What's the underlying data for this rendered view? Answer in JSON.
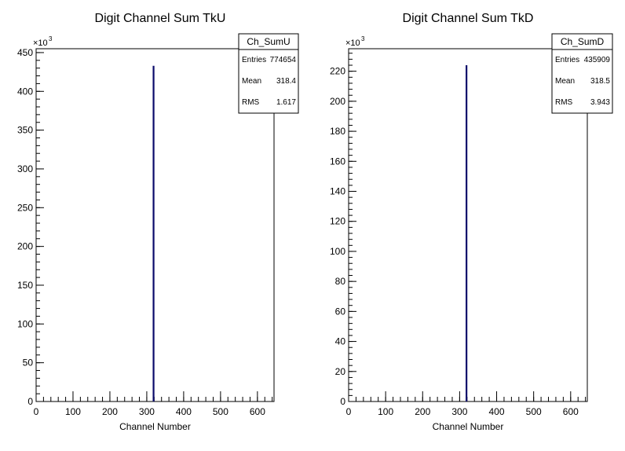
{
  "colors": {
    "histogram": "#0b0b6b",
    "axis": "#000000",
    "background": "#ffffff"
  },
  "chart_data": [
    {
      "type": "bar",
      "title": "Digit Channel Sum TkU",
      "xlabel": "Channel Number",
      "ylabel": "",
      "multiplier": "×10",
      "multiplier_exp": "3",
      "xlim": [
        0,
        645
      ],
      "ylim": [
        0,
        455
      ],
      "x_ticks": [
        0,
        100,
        200,
        300,
        400,
        500,
        600
      ],
      "y_ticks": [
        0,
        50,
        100,
        150,
        200,
        250,
        300,
        350,
        400,
        450
      ],
      "bins": [
        {
          "x": 318.4,
          "value": 433
        }
      ],
      "stats": {
        "name": "Ch_SumU",
        "rows": [
          {
            "label": "Entries",
            "value": "774654"
          },
          {
            "label": "Mean",
            "value": "318.4"
          },
          {
            "label": "RMS",
            "value": "1.617"
          }
        ]
      }
    },
    {
      "type": "bar",
      "title": "Digit Channel Sum TkD",
      "xlabel": "Channel Number",
      "ylabel": "",
      "multiplier": "×10",
      "multiplier_exp": "3",
      "xlim": [
        0,
        645
      ],
      "ylim": [
        0,
        235
      ],
      "x_ticks": [
        0,
        100,
        200,
        300,
        400,
        500,
        600
      ],
      "y_ticks": [
        0,
        20,
        40,
        60,
        80,
        100,
        120,
        140,
        160,
        180,
        200,
        220
      ],
      "bins": [
        {
          "x": 318.5,
          "value": 224
        }
      ],
      "stats": {
        "name": "Ch_SumD",
        "rows": [
          {
            "label": "Entries",
            "value": "435909"
          },
          {
            "label": "Mean",
            "value": "318.5"
          },
          {
            "label": "RMS",
            "value": "3.943"
          }
        ]
      }
    }
  ]
}
